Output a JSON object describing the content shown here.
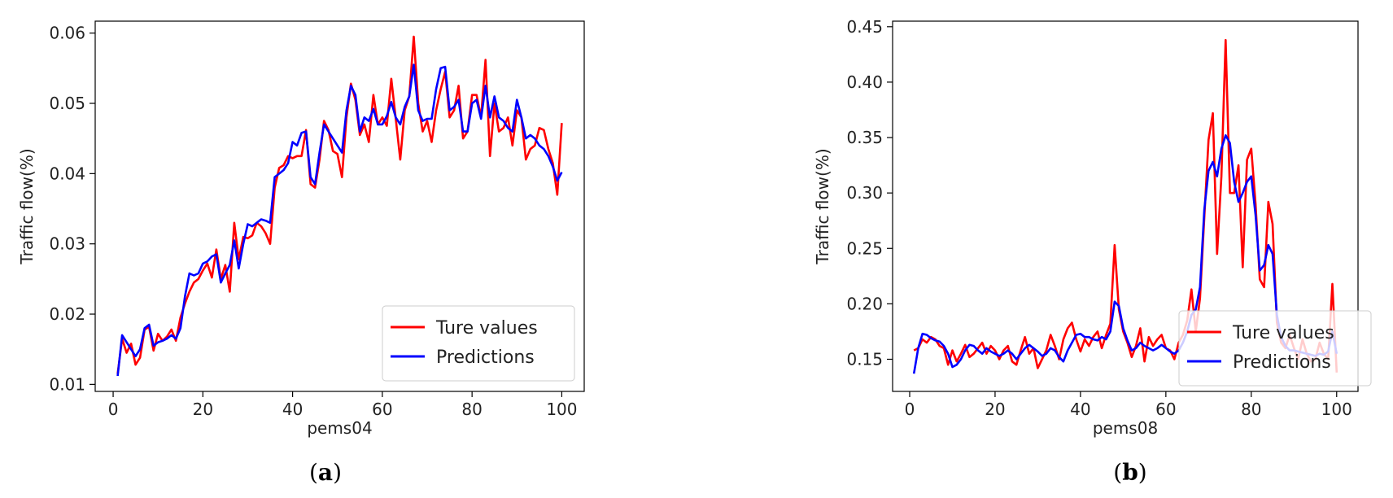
{
  "chart_data": [
    {
      "type": "line",
      "panel_label": "a",
      "xlabel": "pems04",
      "ylabel": "Traffic flow(%)",
      "xlim": [
        -4,
        105
      ],
      "ylim": [
        0.009,
        0.0617
      ],
      "xticks": [
        0,
        20,
        40,
        60,
        80,
        100
      ],
      "xtick_labels": [
        "0",
        "20",
        "40",
        "60",
        "80",
        "100"
      ],
      "yticks": [
        0.01,
        0.02,
        0.03,
        0.04,
        0.05,
        0.06
      ],
      "ytick_labels": [
        "0.01",
        "0.02",
        "0.03",
        "0.04",
        "0.05",
        "0.06"
      ],
      "legend_position": "lower-right",
      "x": [
        1,
        2,
        3,
        4,
        5,
        6,
        7,
        8,
        9,
        10,
        11,
        12,
        13,
        14,
        15,
        16,
        17,
        18,
        19,
        20,
        21,
        22,
        23,
        24,
        25,
        26,
        27,
        28,
        29,
        30,
        31,
        32,
        33,
        34,
        35,
        36,
        37,
        38,
        39,
        40,
        41,
        42,
        43,
        44,
        45,
        46,
        47,
        48,
        49,
        50,
        51,
        52,
        53,
        54,
        55,
        56,
        57,
        58,
        59,
        60,
        61,
        62,
        63,
        64,
        65,
        66,
        67,
        68,
        69,
        70,
        71,
        72,
        73,
        74,
        75,
        76,
        77,
        78,
        79,
        80,
        81,
        82,
        83,
        84,
        85,
        86,
        87,
        88,
        89,
        90,
        91,
        92,
        93,
        94,
        95,
        96,
        97,
        98,
        99,
        100
      ],
      "series": [
        {
          "name": "Ture values",
          "color": "#ff0000",
          "values": [
            0.0115,
            0.0165,
            0.0145,
            0.0158,
            0.0128,
            0.0138,
            0.0178,
            0.0182,
            0.0148,
            0.0172,
            0.0162,
            0.0168,
            0.0178,
            0.0162,
            0.0195,
            0.0215,
            0.0232,
            0.0245,
            0.025,
            0.0262,
            0.0272,
            0.0252,
            0.0292,
            0.025,
            0.027,
            0.0232,
            0.033,
            0.0278,
            0.031,
            0.0308,
            0.0312,
            0.033,
            0.0325,
            0.0315,
            0.03,
            0.038,
            0.0408,
            0.0412,
            0.0425,
            0.0422,
            0.0425,
            0.0425,
            0.0462,
            0.0385,
            0.038,
            0.042,
            0.0475,
            0.0462,
            0.0432,
            0.0428,
            0.0395,
            0.048,
            0.0528,
            0.0505,
            0.0455,
            0.047,
            0.0445,
            0.0512,
            0.047,
            0.048,
            0.0468,
            0.0535,
            0.0478,
            0.042,
            0.049,
            0.051,
            0.0595,
            0.05,
            0.046,
            0.0475,
            0.0445,
            0.049,
            0.052,
            0.0545,
            0.048,
            0.049,
            0.0525,
            0.045,
            0.046,
            0.0512,
            0.0512,
            0.048,
            0.0562,
            0.0425,
            0.05,
            0.046,
            0.0465,
            0.048,
            0.044,
            0.049,
            0.048,
            0.042,
            0.0435,
            0.044,
            0.0465,
            0.0462,
            0.0435,
            0.0415,
            0.037,
            0.0472
          ]
        },
        {
          "name": "Predictions",
          "color": "#0000ff",
          "values": [
            0.0112,
            0.017,
            0.016,
            0.015,
            0.014,
            0.015,
            0.018,
            0.0185,
            0.0155,
            0.016,
            0.0162,
            0.0165,
            0.017,
            0.0165,
            0.018,
            0.0225,
            0.0258,
            0.0255,
            0.0258,
            0.0272,
            0.0275,
            0.0282,
            0.0285,
            0.0245,
            0.0258,
            0.027,
            0.0305,
            0.0265,
            0.03,
            0.0328,
            0.0325,
            0.033,
            0.0335,
            0.0333,
            0.033,
            0.0395,
            0.04,
            0.0405,
            0.0415,
            0.0445,
            0.044,
            0.0458,
            0.046,
            0.0395,
            0.0385,
            0.043,
            0.047,
            0.046,
            0.045,
            0.044,
            0.043,
            0.049,
            0.0525,
            0.0512,
            0.046,
            0.048,
            0.0475,
            0.0492,
            0.047,
            0.047,
            0.0482,
            0.0502,
            0.048,
            0.047,
            0.0495,
            0.051,
            0.0555,
            0.049,
            0.0475,
            0.0478,
            0.0478,
            0.052,
            0.055,
            0.0552,
            0.049,
            0.0495,
            0.0505,
            0.046,
            0.046,
            0.05,
            0.0505,
            0.0478,
            0.0525,
            0.048,
            0.051,
            0.048,
            0.0475,
            0.0465,
            0.046,
            0.0505,
            0.048,
            0.045,
            0.0455,
            0.045,
            0.044,
            0.0435,
            0.0425,
            0.041,
            0.039,
            0.0402
          ]
        }
      ]
    },
    {
      "type": "line",
      "panel_label": "b",
      "xlabel": "pems08",
      "ylabel": "Traffic flow(%)",
      "xlim": [
        -4,
        105
      ],
      "ylim": [
        0.121,
        0.455
      ],
      "xticks": [
        0,
        20,
        40,
        60,
        80,
        100
      ],
      "xtick_labels": [
        "0",
        "20",
        "40",
        "60",
        "80",
        "100"
      ],
      "yticks": [
        0.15,
        0.2,
        0.25,
        0.3,
        0.35,
        0.4,
        0.45
      ],
      "ytick_labels": [
        "0.15",
        "0.20",
        "0.25",
        "0.30",
        "0.35",
        "0.40",
        "0.45"
      ],
      "legend_position": "lower-right",
      "x": [
        1,
        2,
        3,
        4,
        5,
        6,
        7,
        8,
        9,
        10,
        11,
        12,
        13,
        14,
        15,
        16,
        17,
        18,
        19,
        20,
        21,
        22,
        23,
        24,
        25,
        26,
        27,
        28,
        29,
        30,
        31,
        32,
        33,
        34,
        35,
        36,
        37,
        38,
        39,
        40,
        41,
        42,
        43,
        44,
        45,
        46,
        47,
        48,
        49,
        50,
        51,
        52,
        53,
        54,
        55,
        56,
        57,
        58,
        59,
        60,
        61,
        62,
        63,
        64,
        65,
        66,
        67,
        68,
        69,
        70,
        71,
        72,
        73,
        74,
        75,
        76,
        77,
        78,
        79,
        80,
        81,
        82,
        83,
        84,
        85,
        86,
        87,
        88,
        89,
        90,
        91,
        92,
        93,
        94,
        95,
        96,
        97,
        98,
        99,
        100
      ],
      "series": [
        {
          "name": "Ture values",
          "color": "#ff0000",
          "values": [
            0.158,
            0.16,
            0.168,
            0.165,
            0.17,
            0.168,
            0.162,
            0.16,
            0.145,
            0.158,
            0.148,
            0.155,
            0.163,
            0.152,
            0.155,
            0.16,
            0.165,
            0.155,
            0.162,
            0.158,
            0.15,
            0.158,
            0.162,
            0.148,
            0.145,
            0.158,
            0.17,
            0.155,
            0.16,
            0.142,
            0.15,
            0.158,
            0.172,
            0.162,
            0.15,
            0.168,
            0.178,
            0.183,
            0.168,
            0.157,
            0.168,
            0.162,
            0.17,
            0.175,
            0.16,
            0.172,
            0.182,
            0.253,
            0.195,
            0.175,
            0.165,
            0.152,
            0.162,
            0.178,
            0.148,
            0.17,
            0.162,
            0.168,
            0.172,
            0.16,
            0.158,
            0.15,
            0.165,
            0.172,
            0.185,
            0.213,
            0.175,
            0.205,
            0.278,
            0.348,
            0.372,
            0.245,
            0.315,
            0.438,
            0.3,
            0.3,
            0.325,
            0.233,
            0.33,
            0.34,
            0.29,
            0.222,
            0.215,
            0.292,
            0.272,
            0.183,
            0.165,
            0.16,
            0.172,
            0.16,
            0.15,
            0.168,
            0.155,
            0.148,
            0.15,
            0.165,
            0.155,
            0.15,
            0.218,
            0.138
          ]
        },
        {
          "name": "Predictions",
          "color": "#0000ff",
          "values": [
            0.137,
            0.16,
            0.173,
            0.172,
            0.169,
            0.167,
            0.166,
            0.162,
            0.155,
            0.143,
            0.145,
            0.15,
            0.158,
            0.163,
            0.162,
            0.158,
            0.155,
            0.16,
            0.157,
            0.155,
            0.153,
            0.155,
            0.158,
            0.155,
            0.15,
            0.155,
            0.16,
            0.163,
            0.16,
            0.157,
            0.153,
            0.155,
            0.16,
            0.158,
            0.152,
            0.148,
            0.158,
            0.165,
            0.172,
            0.173,
            0.17,
            0.17,
            0.168,
            0.167,
            0.17,
            0.168,
            0.175,
            0.202,
            0.198,
            0.178,
            0.167,
            0.158,
            0.16,
            0.165,
            0.162,
            0.16,
            0.158,
            0.16,
            0.163,
            0.16,
            0.157,
            0.155,
            0.158,
            0.165,
            0.175,
            0.19,
            0.195,
            0.215,
            0.285,
            0.32,
            0.328,
            0.315,
            0.34,
            0.352,
            0.345,
            0.31,
            0.292,
            0.3,
            0.31,
            0.315,
            0.28,
            0.23,
            0.235,
            0.253,
            0.245,
            0.19,
            0.17,
            0.162,
            0.158,
            0.158,
            0.157,
            0.156,
            0.155,
            0.154,
            0.153,
            0.155,
            0.154,
            0.157,
            0.175,
            0.155
          ]
        }
      ]
    }
  ],
  "captions": [
    {
      "open": "(",
      "letter": "a",
      "close": ")"
    },
    {
      "open": "(",
      "letter": "b",
      "close": ")"
    }
  ]
}
